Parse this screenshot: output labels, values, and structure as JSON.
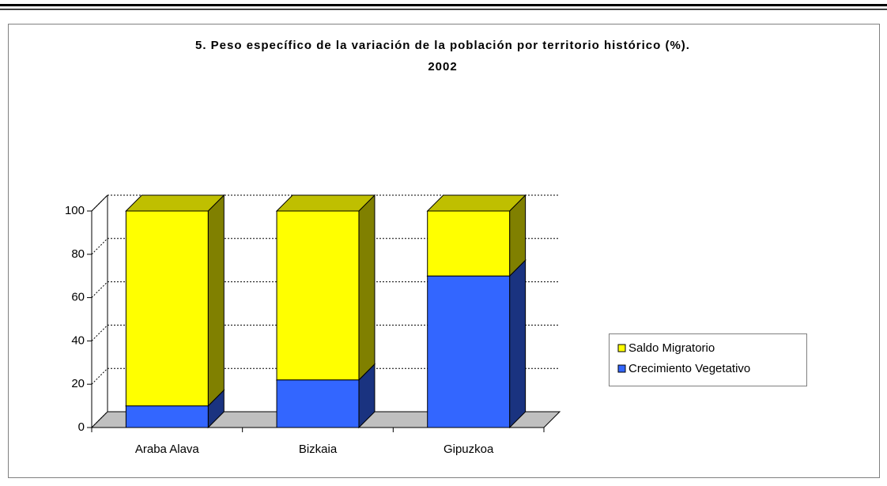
{
  "chart_data": {
    "type": "bar",
    "stacked": true,
    "three_d": true,
    "title": "5. Peso específico de la variación de la población por territorio histórico (%).",
    "subtitle": "2002",
    "categories": [
      "Araba Alava",
      "Bizkaia",
      "Gipuzkoa"
    ],
    "series": [
      {
        "name": "Crecimiento Vegetativo",
        "color": "#3366ff",
        "values": [
          10,
          22,
          70
        ]
      },
      {
        "name": "Saldo Migratorio",
        "color": "#ffff00",
        "values": [
          90,
          78,
          30
        ]
      }
    ],
    "ylim": [
      0,
      100
    ],
    "yticks": [
      0,
      20,
      40,
      60,
      80,
      100
    ],
    "grid": true,
    "legend": "right"
  }
}
